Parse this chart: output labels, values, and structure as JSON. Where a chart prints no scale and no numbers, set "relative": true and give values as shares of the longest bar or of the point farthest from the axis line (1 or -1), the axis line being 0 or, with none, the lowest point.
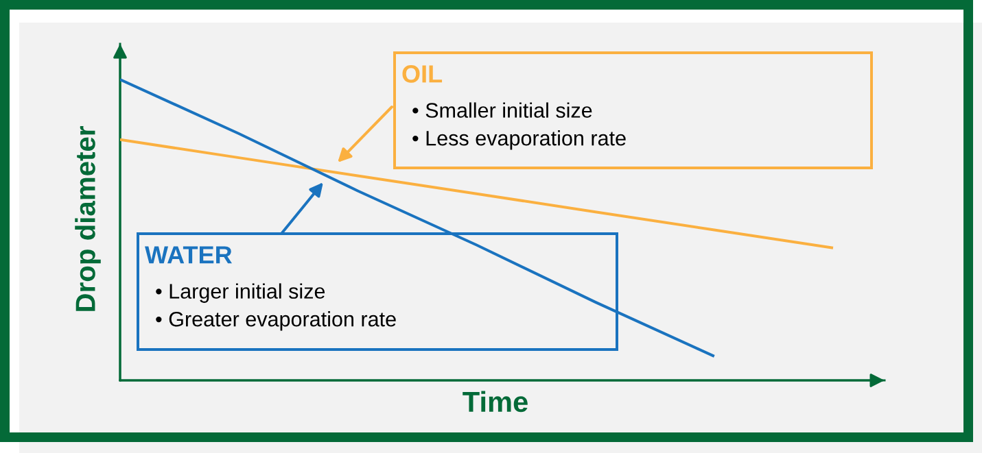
{
  "chart_data": {
    "type": "line",
    "xlabel": "Time",
    "ylabel": "Drop diameter",
    "relative": true,
    "categories": [
      null,
      null,
      null,
      null,
      null,
      null,
      null
    ],
    "series": [
      {
        "name": "OIL",
        "color": "#fbb040",
        "values": [
          0.8,
          0.74,
          0.68,
          0.62,
          0.56,
          0.5,
          0.44
        ]
      },
      {
        "name": "WATER",
        "color": "#1a73bf",
        "values": [
          1,
          0.82,
          0.63,
          0.45,
          0.26,
          0.08,
          null
        ]
      }
    ],
    "annotations": [
      "• Smaller initial size\n• Less evaporation rate",
      "• Larger initial size\n• Greater evaporation rate"
    ]
  }
}
